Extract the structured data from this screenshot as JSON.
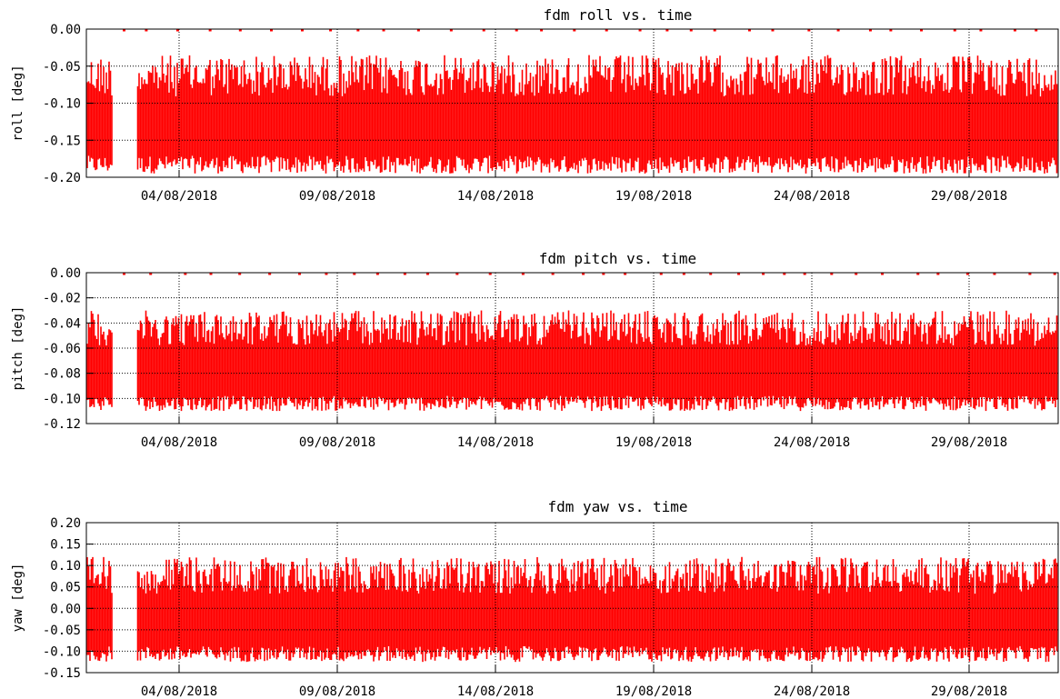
{
  "chart_data": [
    {
      "type": "line",
      "title": "fdm roll vs. time",
      "ylabel": "roll [deg]",
      "xlabel": "",
      "x_range": [
        "01/08/2018",
        "01/09/2018"
      ],
      "ylim": [
        -0.2,
        0.0
      ],
      "yticks": [
        "0.00",
        "-0.05",
        "-0.10",
        "-0.15",
        "-0.20"
      ],
      "ytick_values": [
        0.0,
        -0.05,
        -0.1,
        -0.15,
        -0.2
      ],
      "ygrid": [
        -0.05,
        -0.1,
        -0.15
      ],
      "xticks": [
        "04/08/2018",
        "09/08/2018",
        "14/08/2018",
        "19/08/2018",
        "24/08/2018",
        "29/08/2018"
      ],
      "grid": true,
      "series": [
        {
          "color": "#ff0000",
          "data_gaps": [
            [
              "02/08/2018",
              "02/08/2018"
            ]
          ],
          "band_low": -0.195,
          "band_high": -0.035,
          "spike_to": 0.0
        }
      ]
    },
    {
      "type": "line",
      "title": "fdm pitch vs. time",
      "ylabel": "pitch [deg]",
      "xlabel": "",
      "x_range": [
        "01/08/2018",
        "01/09/2018"
      ],
      "ylim": [
        -0.12,
        0.0
      ],
      "yticks": [
        "0.00",
        "-0.02",
        "-0.04",
        "-0.06",
        "-0.08",
        "-0.10",
        "-0.12"
      ],
      "ytick_values": [
        0.0,
        -0.02,
        -0.04,
        -0.06,
        -0.08,
        -0.1,
        -0.12
      ],
      "ygrid": [
        -0.02,
        -0.04,
        -0.06,
        -0.08,
        -0.1
      ],
      "xticks": [
        "04/08/2018",
        "09/08/2018",
        "14/08/2018",
        "19/08/2018",
        "24/08/2018",
        "29/08/2018"
      ],
      "grid": true,
      "series": [
        {
          "color": "#ff0000",
          "data_gaps": [
            [
              "02/08/2018",
              "02/08/2018"
            ]
          ],
          "band_low": -0.11,
          "band_high": -0.03,
          "spike_to": 0.0
        }
      ]
    },
    {
      "type": "line",
      "title": "fdm yaw vs. time",
      "ylabel": "yaw [deg]",
      "xlabel": "",
      "x_range": [
        "01/08/2018",
        "01/09/2018"
      ],
      "ylim": [
        -0.15,
        0.2
      ],
      "yticks": [
        "0.20",
        "0.15",
        "0.10",
        "0.05",
        "0.00",
        "-0.05",
        "-0.10",
        "-0.15"
      ],
      "ytick_values": [
        0.2,
        0.15,
        0.1,
        0.05,
        0.0,
        -0.05,
        -0.1,
        -0.15
      ],
      "ygrid": [
        0.15,
        0.1,
        0.05,
        0.0,
        -0.05,
        -0.1
      ],
      "xticks": [
        "04/08/2018",
        "09/08/2018",
        "14/08/2018",
        "19/08/2018",
        "24/08/2018",
        "29/08/2018"
      ],
      "grid": true,
      "series": [
        {
          "color": "#ff0000",
          "data_gaps": [
            [
              "02/08/2018",
              "02/08/2018"
            ]
          ],
          "band_low": -0.125,
          "band_high": 0.12,
          "spike_to": null
        }
      ]
    }
  ]
}
